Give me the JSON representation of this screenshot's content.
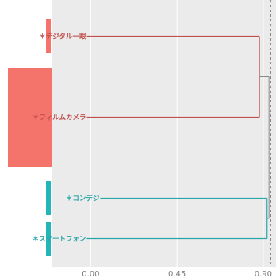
{
  "chart_data": {
    "type": "dendrogram",
    "xlim": [
      -0.2,
      0.95
    ],
    "x_ticks": [
      {
        "value": 0.0,
        "label": "0.00"
      },
      {
        "value": 0.45,
        "label": "0.45"
      },
      {
        "value": 0.9,
        "label": "0.90"
      }
    ],
    "cut_line": 0.93,
    "leaves": [
      {
        "id": "digital",
        "label": "＊デジタル一眼",
        "cluster": "red",
        "weight": 1
      },
      {
        "id": "film",
        "label": "＊フィルムカメラ",
        "cluster": "red",
        "weight": 3
      },
      {
        "id": "compact",
        "label": "＊コンデジ",
        "cluster": "teal",
        "weight": 1
      },
      {
        "id": "smartphone",
        "label": "＊スマートフォン",
        "cluster": "teal",
        "weight": 1
      }
    ],
    "merges": [
      {
        "left": "digital",
        "right": "film",
        "height": 0.88,
        "cluster": "red"
      },
      {
        "left": "compact",
        "right": "smartphone",
        "height": 0.92,
        "cluster": "teal"
      },
      {
        "left": 0,
        "right": 1,
        "height": 0.93,
        "cluster": "root"
      }
    ],
    "colors": {
      "red": "#c0504d",
      "teal": "#2aa5a8",
      "red_bar": "#f4736b",
      "teal_bar": "#24b5b8",
      "root": "#8a8a8a",
      "panel": "#ebebeb",
      "grid": "#ffffff"
    }
  }
}
